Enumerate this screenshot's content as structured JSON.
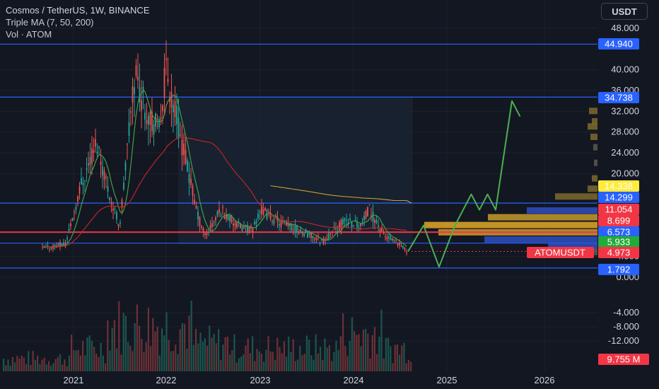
{
  "header": {
    "title": "Cosmos / TetherUS, 1W, BINANCE",
    "indicator_ma": "Triple MA (7, 50, 200)",
    "indicator_vol": "Vol · ATOM"
  },
  "currency_button": "USDT",
  "chart_data": {
    "type": "candlestick",
    "symbol": "ATOMUSDT",
    "interval": "1W",
    "exchange": "BINANCE",
    "x_ticks": [
      "2021",
      "2022",
      "2023",
      "2024",
      "2025",
      "2026"
    ],
    "y_ticks": [
      "48.000",
      "40.000",
      "36.000",
      "32.000",
      "28.000",
      "24.000",
      "20.000",
      "4.000",
      "0.000",
      "-4.000",
      "-8.000",
      "-12.000"
    ],
    "y_range": [
      -14,
      50
    ],
    "horizontal_levels": [
      {
        "value": 44.94,
        "label": "44.940",
        "color": "#2962ff"
      },
      {
        "value": 34.738,
        "label": "34.738",
        "color": "#2962ff"
      },
      {
        "value": 14.338,
        "label": "14.338",
        "color": "#ffeb3b"
      },
      {
        "value": 14.299,
        "label": "14.299",
        "color": "#2962ff"
      },
      {
        "value": 11.054,
        "label": "11.054",
        "color": "#f23645"
      },
      {
        "value": 8.699,
        "label": "8.699",
        "color": "#f23645"
      },
      {
        "value": 6.573,
        "label": "6.573",
        "color": "#2962ff"
      },
      {
        "value": 5.933,
        "label": "5.933",
        "color": "#22ab36"
      },
      {
        "value": 1.792,
        "label": "1.792",
        "color": "#2962ff"
      }
    ],
    "last_price": {
      "label": "ATOMUSDT",
      "value": "4.973",
      "color": "#f23645"
    },
    "volume_last": {
      "value": "9.755 M",
      "color": "#f23645"
    },
    "price_path": [
      [
        "2020-09",
        5.5
      ],
      [
        "2020-12",
        6.5
      ],
      [
        "2021-02",
        18
      ],
      [
        "2021-04",
        26
      ],
      [
        "2021-06",
        14
      ],
      [
        "2021-07",
        10
      ],
      [
        "2021-09",
        40
      ],
      [
        "2021-10",
        34
      ],
      [
        "2021-12",
        28
      ],
      [
        "2022-01",
        40
      ],
      [
        "2022-03",
        26
      ],
      [
        "2022-05",
        12
      ],
      [
        "2022-06",
        8
      ],
      [
        "2022-08",
        13
      ],
      [
        "2022-10",
        10
      ],
      [
        "2022-12",
        9
      ],
      [
        "2023-01",
        13
      ],
      [
        "2023-03",
        11
      ],
      [
        "2023-06",
        9
      ],
      [
        "2023-09",
        7
      ],
      [
        "2023-12",
        11
      ],
      [
        "2024-02",
        10
      ],
      [
        "2024-03",
        13
      ],
      [
        "2024-05",
        8
      ],
      [
        "2024-07",
        6
      ],
      [
        "2024-08",
        4.97
      ]
    ],
    "projection_path": [
      [
        "2024-08",
        4.97
      ],
      [
        "2024-10",
        10
      ],
      [
        "2024-12",
        2
      ],
      [
        "2025-02",
        10
      ],
      [
        "2025-04",
        16
      ],
      [
        "2025-05",
        13
      ],
      [
        "2025-06",
        16
      ],
      [
        "2025-07",
        13
      ],
      [
        "2025-09",
        34
      ],
      [
        "2025-10",
        31
      ]
    ]
  }
}
